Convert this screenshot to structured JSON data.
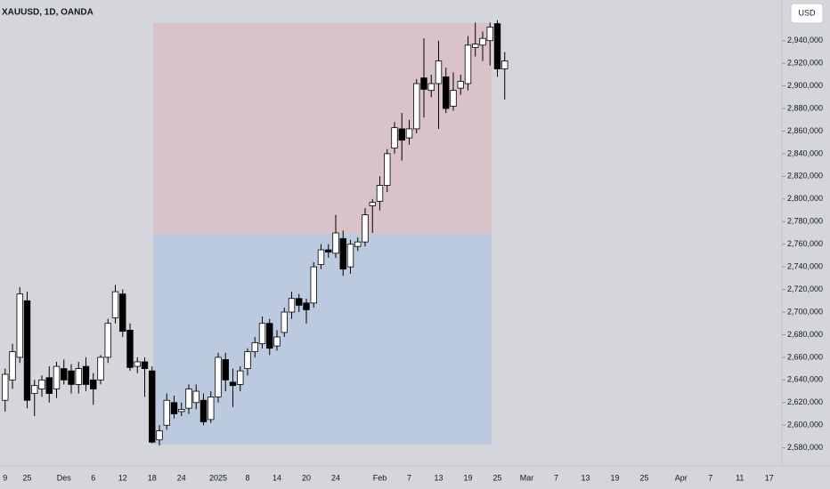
{
  "header": {
    "title": "XAUUSD, 1D, OANDA",
    "currency": "USD"
  },
  "chart_data": {
    "type": "candlestick",
    "categories": [
      "9",
      null,
      null,
      "25",
      null,
      null,
      null,
      null,
      "Des",
      null,
      null,
      null,
      "6",
      null,
      null,
      null,
      "12",
      null,
      null,
      null,
      "18",
      null,
      null,
      null,
      "24",
      null,
      null,
      null,
      null,
      "2025",
      null,
      null,
      null,
      "8",
      null,
      null,
      null,
      "14",
      null,
      null,
      null,
      "20",
      null,
      null,
      null,
      "24",
      null,
      null,
      null,
      null,
      null,
      "Feb",
      null,
      null,
      null,
      "7",
      null,
      null,
      null,
      "13",
      null,
      null,
      null,
      "19",
      null,
      null,
      null,
      "25",
      null,
      null,
      null,
      "Mar",
      null,
      null,
      null,
      "7",
      null,
      null,
      null,
      "13",
      null,
      null,
      null,
      "19",
      null,
      null,
      null,
      "25",
      null,
      null,
      null,
      null,
      "Apr",
      null,
      null,
      null,
      "7",
      null,
      null,
      null,
      "11",
      null,
      null,
      null,
      "17",
      null
    ],
    "open": [
      2622000,
      2640000,
      2660000,
      2710000,
      2628000,
      2632000,
      2642000,
      2632000,
      2650000,
      2648000,
      2636000,
      2652000,
      2640000,
      2640000,
      2660000,
      2695000,
      2716000,
      2684000,
      2652000,
      2656000,
      2648000,
      2587000,
      2600000,
      2620000,
      2612000,
      2615000,
      2620000,
      2622000,
      2605000,
      2625000,
      2658000,
      2638000,
      2636000,
      2650000,
      2665000,
      2672000,
      2690000,
      2670000,
      2682000,
      2700000,
      2712000,
      2708000,
      2708000,
      2742000,
      2755000,
      2752000,
      2765000,
      2740000,
      2758000,
      2762000,
      2794000,
      2798000,
      2812000,
      2845000,
      2862000,
      2854000,
      2862000,
      2907000,
      2896000,
      2902000,
      2908000,
      2882000,
      2898000,
      2902000,
      2934000,
      2936000,
      2940000,
      2955000,
      2915000,
      null,
      null,
      null,
      null,
      null,
      null,
      null,
      null,
      null,
      null,
      null,
      null,
      null,
      null,
      null,
      null,
      null,
      null,
      null,
      null,
      null,
      null,
      null,
      null,
      null,
      null,
      null,
      null,
      null,
      null,
      null,
      null,
      null,
      null,
      null,
      null,
      null
    ],
    "high": [
      2650000,
      2672000,
      2722000,
      2718000,
      2640000,
      2644000,
      2652000,
      2656000,
      2658000,
      2654000,
      2656000,
      2660000,
      2646000,
      2662000,
      2694000,
      2724000,
      2720000,
      2690000,
      2660000,
      2660000,
      2652000,
      2600000,
      2628000,
      2626000,
      2620000,
      2636000,
      2636000,
      2628000,
      2630000,
      2664000,
      2664000,
      2650000,
      2652000,
      2668000,
      2678000,
      2696000,
      2694000,
      2684000,
      2704000,
      2718000,
      2716000,
      2712000,
      2744000,
      2760000,
      2760000,
      2786000,
      2772000,
      2764000,
      2766000,
      2792000,
      2800000,
      2820000,
      2844000,
      2868000,
      2876000,
      2870000,
      2906000,
      2942000,
      2910000,
      2940000,
      2916000,
      2912000,
      2910000,
      2944000,
      2956000,
      2948000,
      2956000,
      2958000,
      2930000,
      null,
      null,
      null,
      null,
      null,
      null,
      null,
      null,
      null,
      null,
      null,
      null,
      null,
      null,
      null,
      null,
      null,
      null,
      null,
      null,
      null,
      null,
      null,
      null,
      null,
      null,
      null,
      null,
      null,
      null,
      null,
      null,
      null,
      null,
      null,
      null,
      null
    ],
    "low": [
      2612000,
      2632000,
      2655000,
      2615000,
      2608000,
      2625000,
      2620000,
      2624000,
      2636000,
      2628000,
      2628000,
      2630000,
      2618000,
      2636000,
      2655000,
      2690000,
      2678000,
      2648000,
      2646000,
      2625000,
      2584000,
      2582000,
      2596000,
      2606000,
      2608000,
      2610000,
      2614000,
      2600000,
      2602000,
      2620000,
      2630000,
      2616000,
      2630000,
      2644000,
      2660000,
      2668000,
      2662000,
      2666000,
      2678000,
      2694000,
      2700000,
      2690000,
      2704000,
      2738000,
      2748000,
      2748000,
      2732000,
      2734000,
      2754000,
      2758000,
      2770000,
      2790000,
      2806000,
      2840000,
      2834000,
      2848000,
      2858000,
      2872000,
      2890000,
      2862000,
      2876000,
      2878000,
      2892000,
      2896000,
      2926000,
      2922000,
      2918000,
      2908000,
      2888000,
      null,
      null,
      null,
      null,
      null,
      null,
      null,
      null,
      null,
      null,
      null,
      null,
      null,
      null,
      null,
      null,
      null,
      null,
      null,
      null,
      null,
      null,
      null,
      null,
      null,
      null,
      null,
      null,
      null,
      null,
      null,
      null,
      null,
      null,
      null,
      null,
      null
    ],
    "close": [
      2645000,
      2665000,
      2716000,
      2622000,
      2635000,
      2640000,
      2628000,
      2652000,
      2640000,
      2636000,
      2650000,
      2636000,
      2632000,
      2660000,
      2690000,
      2718000,
      2683000,
      2651000,
      2656000,
      2650000,
      2585000,
      2595000,
      2622000,
      2610000,
      2614000,
      2632000,
      2630000,
      2603000,
      2625000,
      2660000,
      2640000,
      2635000,
      2648000,
      2665000,
      2673000,
      2690000,
      2668000,
      2678000,
      2700000,
      2712000,
      2706000,
      2702000,
      2740000,
      2755000,
      2753000,
      2770000,
      2738000,
      2760000,
      2762000,
      2786000,
      2797000,
      2812000,
      2840000,
      2863000,
      2852000,
      2862000,
      2902000,
      2897000,
      2902000,
      2922000,
      2880000,
      2896000,
      2904000,
      2936000,
      2937000,
      2942000,
      2952000,
      2915000,
      2922000,
      null,
      null,
      null,
      null,
      null,
      null,
      null,
      null,
      null,
      null,
      null,
      null,
      null,
      null,
      null,
      null,
      null,
      null,
      null,
      null,
      null,
      null,
      null,
      null,
      null,
      null,
      null,
      null,
      null,
      null,
      null,
      null,
      null,
      null,
      null,
      null,
      null
    ],
    "up_color": "#ffffff",
    "down_color": "#000000",
    "ylim": [
      2564000,
      2972000
    ],
    "yticks": [
      {
        "value": 2580000,
        "label": "2,580,000"
      },
      {
        "value": 2600000,
        "label": "2,600,000"
      },
      {
        "value": 2620000,
        "label": "2,620,000"
      },
      {
        "value": 2640000,
        "label": "2,640,000"
      },
      {
        "value": 2660000,
        "label": "2,660,000"
      },
      {
        "value": 2680000,
        "label": "2,680,000"
      },
      {
        "value": 2700000,
        "label": "2,700,000"
      },
      {
        "value": 2720000,
        "label": "2,720,000"
      },
      {
        "value": 2740000,
        "label": "2,740,000"
      },
      {
        "value": 2760000,
        "label": "2,760,000"
      },
      {
        "value": 2780000,
        "label": "2,780,000"
      },
      {
        "value": 2800000,
        "label": "2,800,000"
      },
      {
        "value": 2820000,
        "label": "2,820,000"
      },
      {
        "value": 2840000,
        "label": "2,840,000"
      },
      {
        "value": 2860000,
        "label": "2,860,000"
      },
      {
        "value": 2880000,
        "label": "2,880,000"
      },
      {
        "value": 2900000,
        "label": "2,900,000"
      },
      {
        "value": 2920000,
        "label": "2,920,000"
      },
      {
        "value": 2940000,
        "label": "2,940,000"
      }
    ]
  }
}
